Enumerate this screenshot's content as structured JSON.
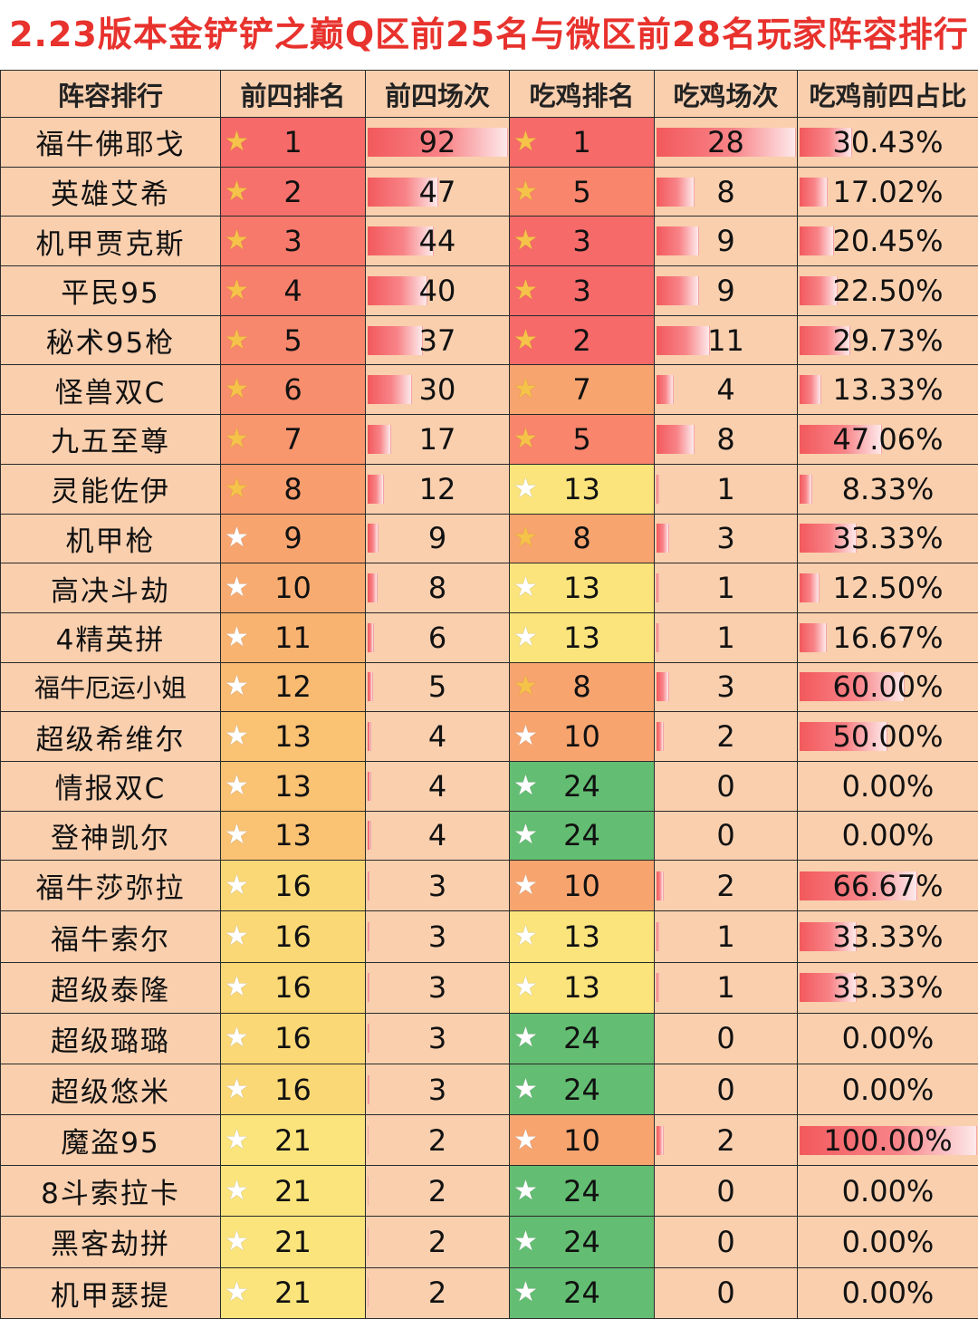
{
  "title": "2.23版本金铲铲之巅Q区前25名与微区前28名玩家阵容排行",
  "colors": {
    "rank_top": "#f66a6a",
    "rank_mid": "#f8a46f",
    "rank_low": "#fbd876",
    "rank_bottom": "#fbe47c",
    "win_green": "#63bd72",
    "win_yellow": "#fbe47c",
    "win_orange": "#f8a46f",
    "win_red": "#f66a6a",
    "star_gold": "#f5c34a",
    "bar": "#f2595d",
    "title_red": "#e8322d"
  },
  "chart_data": {
    "type": "table",
    "title": "2.23版本金铲铲之巅Q区前25名与微区前28名玩家阵容排行",
    "columns": [
      "阵容排行",
      "前四排名",
      "前四场次",
      "吃鸡排名",
      "吃鸡场次",
      "吃鸡前四占比"
    ],
    "max_top4": 92,
    "max_wins": 28,
    "rows": [
      {
        "name": "福牛佛耶戈",
        "top4_rank": "1",
        "top4_count": 92,
        "win_rank": "1",
        "win_count": 28,
        "ratio": "30.43%",
        "ratio_value": 30.43
      },
      {
        "name": "英雄艾希",
        "top4_rank": "2",
        "top4_count": 47,
        "win_rank": "5",
        "win_count": 8,
        "ratio": "17.02%",
        "ratio_value": 17.02
      },
      {
        "name": "机甲贾克斯",
        "top4_rank": "3",
        "top4_count": 44,
        "win_rank": "3",
        "win_count": 9,
        "ratio": "20.45%",
        "ratio_value": 20.45
      },
      {
        "name": "平民95",
        "top4_rank": "4",
        "top4_count": 40,
        "win_rank": "3",
        "win_count": 9,
        "ratio": "22.50%",
        "ratio_value": 22.5
      },
      {
        "name": "秘术95枪",
        "top4_rank": "5",
        "top4_count": 37,
        "win_rank": "2",
        "win_count": 11,
        "ratio": "29.73%",
        "ratio_value": 29.73
      },
      {
        "name": "怪兽双C",
        "top4_rank": "6",
        "top4_count": 30,
        "win_rank": "7",
        "win_count": 4,
        "ratio": "13.33%",
        "ratio_value": 13.33
      },
      {
        "name": "九五至尊",
        "top4_rank": "7",
        "top4_count": 17,
        "win_rank": "5",
        "win_count": 8,
        "ratio": "47.06%",
        "ratio_value": 47.06
      },
      {
        "name": "灵能佐伊",
        "top4_rank": "8",
        "top4_count": 12,
        "win_rank": "13",
        "win_count": 1,
        "ratio": "8.33%",
        "ratio_value": 8.33
      },
      {
        "name": "机甲枪",
        "top4_rank": "9",
        "top4_count": 9,
        "win_rank": "8",
        "win_count": 3,
        "ratio": "33.33%",
        "ratio_value": 33.33
      },
      {
        "name": "高决斗劫",
        "top4_rank": "10",
        "top4_count": 8,
        "win_rank": "13",
        "win_count": 1,
        "ratio": "12.50%",
        "ratio_value": 12.5
      },
      {
        "name": "4精英拼",
        "top4_rank": "11",
        "top4_count": 6,
        "win_rank": "13",
        "win_count": 1,
        "ratio": "16.67%",
        "ratio_value": 16.67
      },
      {
        "name": "福牛厄运小姐",
        "top4_rank": "12",
        "top4_count": 5,
        "win_rank": "8",
        "win_count": 3,
        "ratio": "60.00%",
        "ratio_value": 60.0
      },
      {
        "name": "超级希维尔",
        "top4_rank": "13",
        "top4_count": 4,
        "win_rank": "10",
        "win_count": 2,
        "ratio": "50.00%",
        "ratio_value": 50.0
      },
      {
        "name": "情报双C",
        "top4_rank": "13",
        "top4_count": 4,
        "win_rank": "24",
        "win_count": 0,
        "ratio": "0.00%",
        "ratio_value": 0
      },
      {
        "name": "登神凯尔",
        "top4_rank": "13",
        "top4_count": 4,
        "win_rank": "24",
        "win_count": 0,
        "ratio": "0.00%",
        "ratio_value": 0
      },
      {
        "name": "福牛莎弥拉",
        "top4_rank": "16",
        "top4_count": 3,
        "win_rank": "10",
        "win_count": 2,
        "ratio": "66.67%",
        "ratio_value": 66.67
      },
      {
        "name": "福牛索尔",
        "top4_rank": "16",
        "top4_count": 3,
        "win_rank": "13",
        "win_count": 1,
        "ratio": "33.33%",
        "ratio_value": 33.33
      },
      {
        "name": "超级泰隆",
        "top4_rank": "16",
        "top4_count": 3,
        "win_rank": "13",
        "win_count": 1,
        "ratio": "33.33%",
        "ratio_value": 33.33
      },
      {
        "name": "超级璐璐",
        "top4_rank": "16",
        "top4_count": 3,
        "win_rank": "24",
        "win_count": 0,
        "ratio": "0.00%",
        "ratio_value": 0
      },
      {
        "name": "超级悠米",
        "top4_rank": "16",
        "top4_count": 3,
        "win_rank": "24",
        "win_count": 0,
        "ratio": "0.00%",
        "ratio_value": 0
      },
      {
        "name": "魔盗95",
        "top4_rank": "21",
        "top4_count": 2,
        "win_rank": "10",
        "win_count": 2,
        "ratio": "100.00%",
        "ratio_value": 100.0
      },
      {
        "name": "8斗索拉卡",
        "top4_rank": "21",
        "top4_count": 2,
        "win_rank": "24",
        "win_count": 0,
        "ratio": "0.00%",
        "ratio_value": 0
      },
      {
        "name": "黑客劫拼",
        "top4_rank": "21",
        "top4_count": 2,
        "win_rank": "24",
        "win_count": 0,
        "ratio": "0.00%",
        "ratio_value": 0
      },
      {
        "name": "机甲瑟提",
        "top4_rank": "21",
        "top4_count": 2,
        "win_rank": "24",
        "win_count": 0,
        "ratio": "0.00%",
        "ratio_value": 0
      }
    ]
  }
}
